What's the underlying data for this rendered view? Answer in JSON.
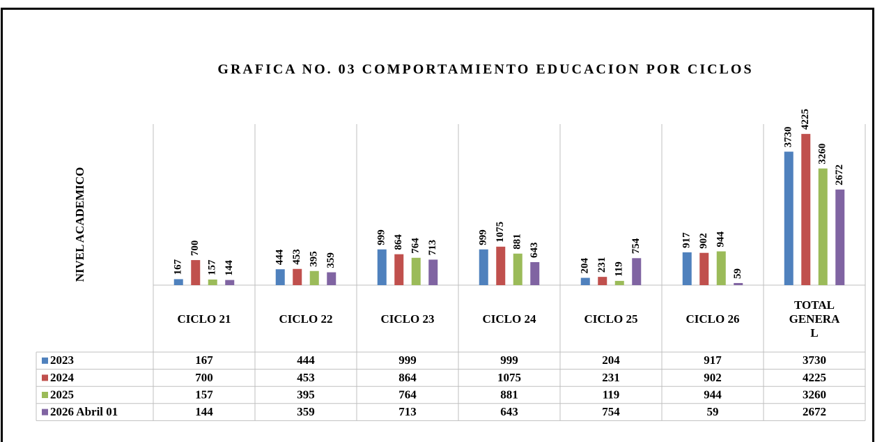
{
  "chart_data": {
    "type": "bar",
    "title": "GRAFICA NO. 03 COMPORTAMIENTO EDUCACION POR CICLOS",
    "y_label": "NIVEL ACADEMICO",
    "categories": [
      "CICLO 21",
      "CICLO 22",
      "CICLO 23",
      "CICLO 24",
      "CICLO 25",
      "CICLO 26",
      "TOTAL GENERAL"
    ],
    "series": [
      {
        "name": "2023",
        "color": "#4f81bd",
        "values": [
          167,
          444,
          999,
          999,
          204,
          917,
          3730
        ]
      },
      {
        "name": "2024",
        "color": "#c0504d",
        "values": [
          700,
          453,
          864,
          1075,
          231,
          902,
          4225
        ]
      },
      {
        "name": "2025",
        "color": "#9bbb59",
        "values": [
          157,
          395,
          764,
          881,
          119,
          944,
          3260
        ]
      },
      {
        "name": "2026 Abril 01",
        "color": "#8064a2",
        "values": [
          144,
          359,
          713,
          643,
          754,
          59,
          2672
        ]
      }
    ],
    "ylim": [
      0,
      4500
    ]
  }
}
